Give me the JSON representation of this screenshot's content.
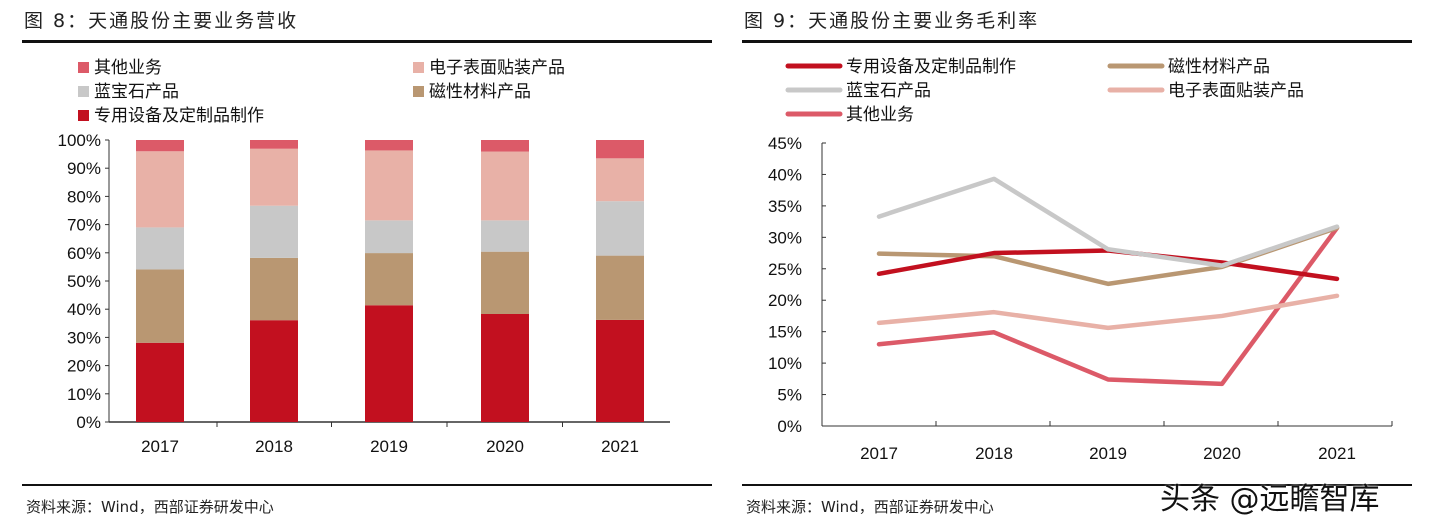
{
  "chart_data": [
    {
      "type": "bar",
      "stacked": true,
      "title": "图 8：天通股份主要业务营收",
      "categories": [
        "2017",
        "2018",
        "2019",
        "2020",
        "2021"
      ],
      "yticks": [
        "0%",
        "10%",
        "20%",
        "30%",
        "40%",
        "50%",
        "60%",
        "70%",
        "80%",
        "90%",
        "100%"
      ],
      "ylim": [
        0,
        100
      ],
      "unit": "%",
      "legend_placement": "top",
      "grid": false,
      "series": [
        {
          "name": "专用设备及定制品制作",
          "color": "#c2101f",
          "values": [
            28.1,
            36.1,
            41.4,
            38.3,
            36.2
          ]
        },
        {
          "name": "磁性材料产品",
          "color": "#b99772",
          "values": [
            26.0,
            22.1,
            18.5,
            22.1,
            22.8
          ]
        },
        {
          "name": "蓝宝石产品",
          "color": "#c8c8c8",
          "values": [
            14.9,
            18.5,
            11.6,
            11.1,
            19.3
          ]
        },
        {
          "name": "电子表面贴装产品",
          "color": "#e8b1a7",
          "values": [
            27.0,
            20.2,
            24.8,
            24.4,
            15.2
          ]
        },
        {
          "name": "其他业务",
          "color": "#dc5a68",
          "values": [
            4.0,
            3.1,
            3.7,
            4.1,
            6.5
          ]
        }
      ],
      "legend_order": [
        4,
        3,
        2,
        1,
        0
      ],
      "source": "资料来源：Wind，西部证券研发中心"
    },
    {
      "type": "line",
      "title": "图 9：天通股份主要业务毛利率",
      "categories": [
        "2017",
        "2018",
        "2019",
        "2020",
        "2021"
      ],
      "yticks": [
        "0%",
        "5%",
        "10%",
        "15%",
        "20%",
        "25%",
        "30%",
        "35%",
        "40%",
        "45%"
      ],
      "ylim": [
        0,
        45
      ],
      "unit": "%",
      "legend_placement": "top",
      "grid": false,
      "series": [
        {
          "name": "专用设备及定制品制作",
          "color": "#c2101f",
          "values": [
            24.2,
            27.5,
            27.9,
            26.0,
            23.4
          ]
        },
        {
          "name": "磁性材料产品",
          "color": "#b99772",
          "values": [
            27.4,
            27.0,
            22.6,
            25.3,
            31.5
          ]
        },
        {
          "name": "蓝宝石产品",
          "color": "#c8c8c8",
          "values": [
            33.3,
            39.3,
            28.1,
            25.5,
            31.7
          ]
        },
        {
          "name": "电子表面贴装产品",
          "color": "#e8b1a7",
          "values": [
            16.4,
            18.1,
            15.6,
            17.5,
            20.7
          ]
        },
        {
          "name": "其他业务",
          "color": "#dc5a68",
          "values": [
            13.0,
            14.9,
            7.4,
            6.7,
            31.5
          ]
        }
      ],
      "legend_order": [
        0,
        1,
        2,
        3,
        4
      ],
      "source": "资料来源：Wind，西部证券研发中心"
    }
  ],
  "watermark": "头条 @远瞻智库"
}
